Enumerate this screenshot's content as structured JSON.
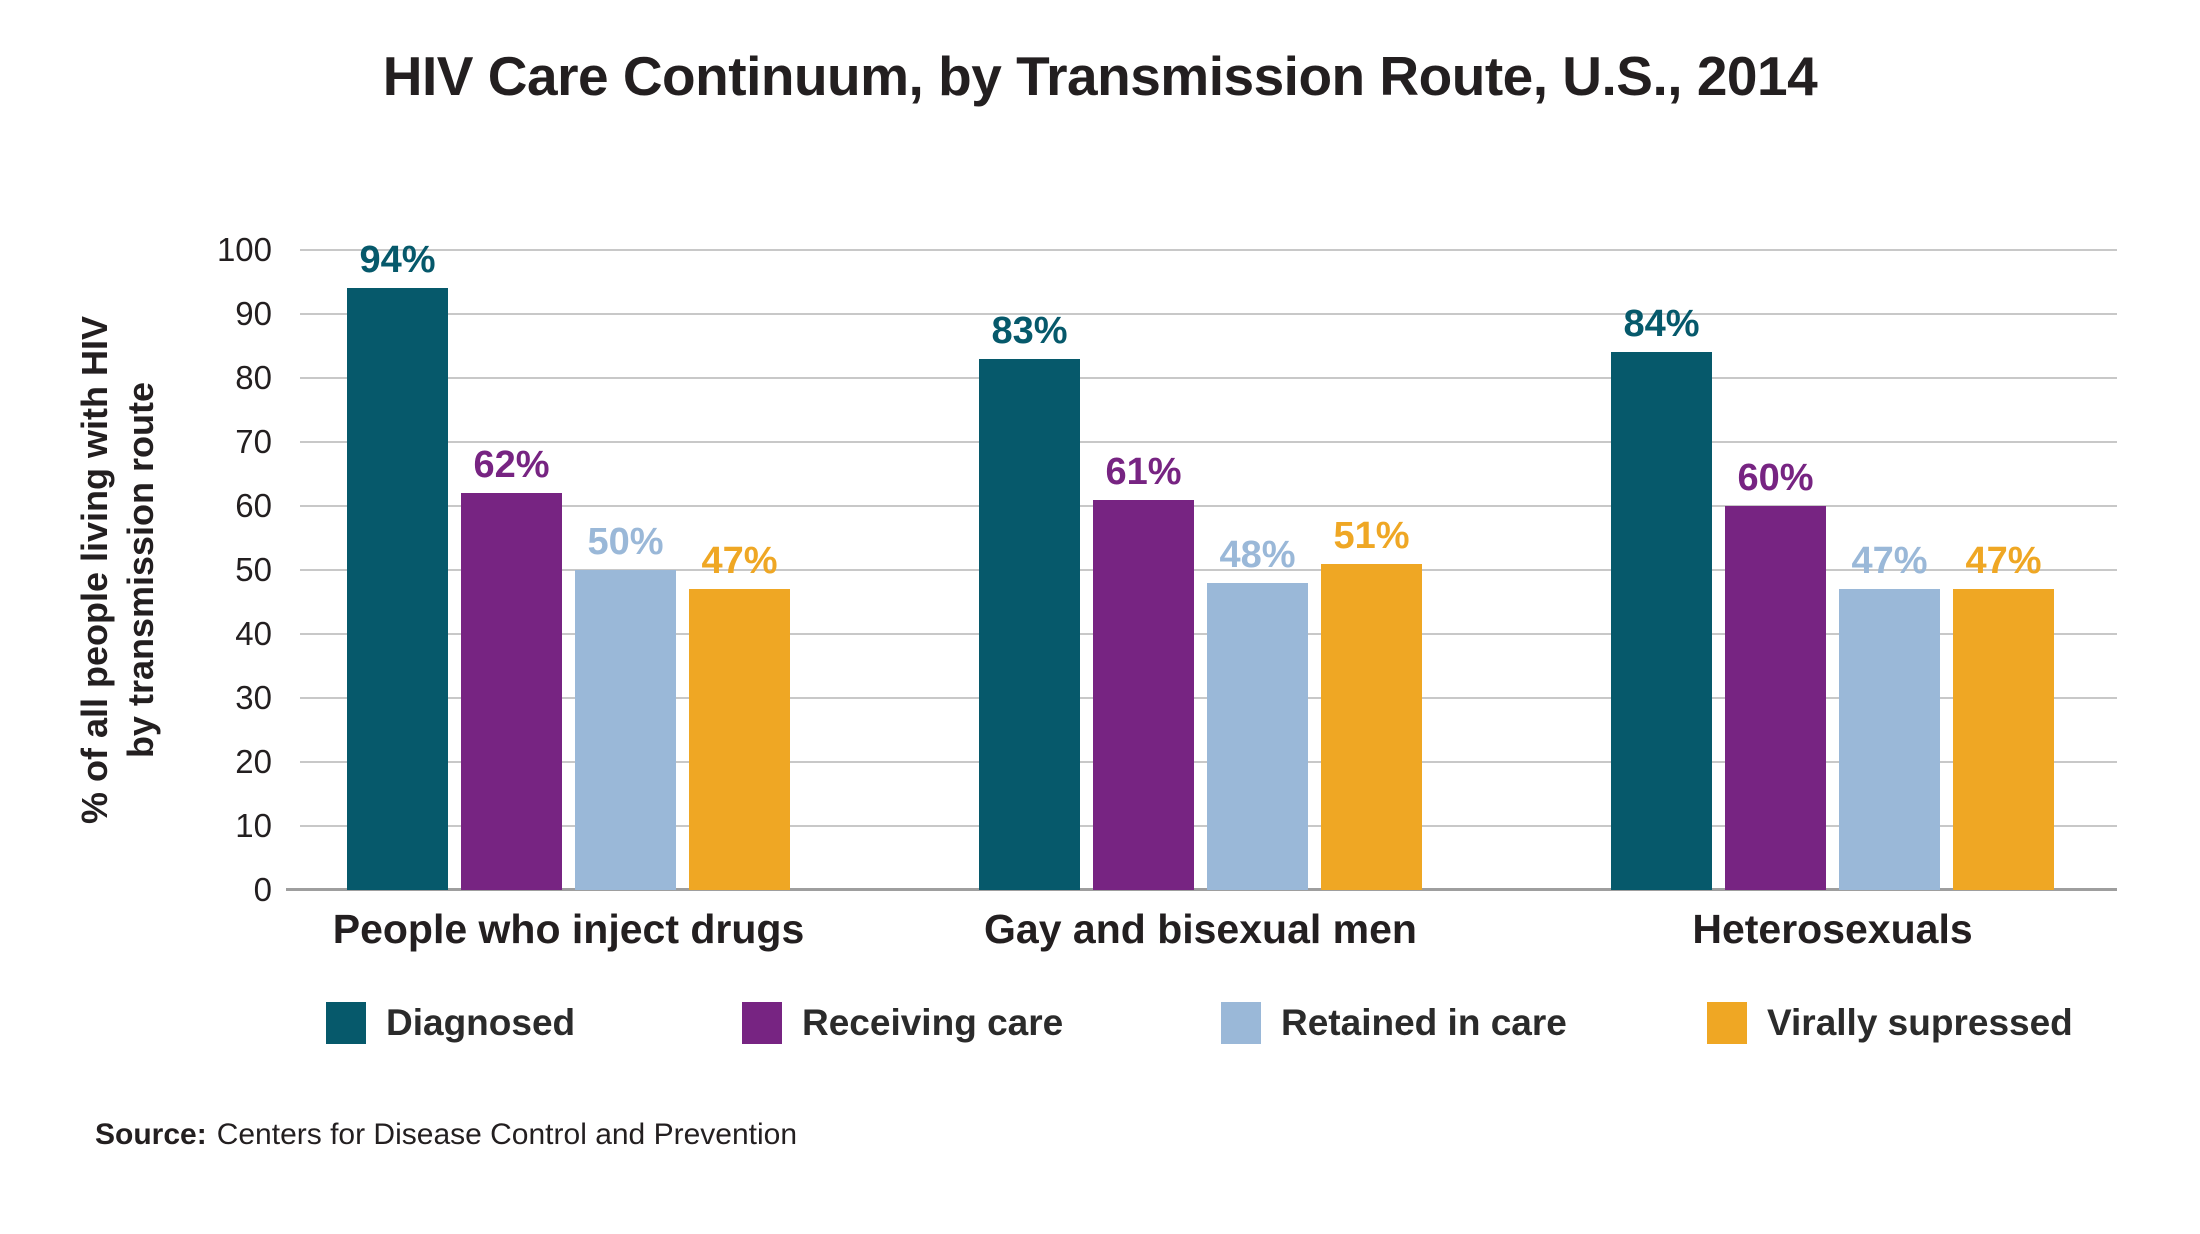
{
  "title": "HIV Care Continuum, by Transmission Route, U.S., 2014",
  "source": {
    "label": "Source:",
    "text": "Centers for Disease Control and Prevention"
  },
  "colors": {
    "teal": "#06596b",
    "purple": "#772482",
    "light_blue": "#9ab8d8",
    "orange": "#efa724",
    "gridline": "#c8c8c8",
    "axis_line": "#9e9e9e",
    "text": "#231f20"
  },
  "chart_data": {
    "type": "bar",
    "title": "HIV Care Continuum, by Transmission Route, U.S., 2014",
    "ylabel_lines": [
      "% of all people living with HIV",
      "by transmission route"
    ],
    "ylabel": "% of all people living with HIV by transmission route",
    "xlabel": "",
    "ylim": [
      0,
      100
    ],
    "yticks": [
      0,
      10,
      20,
      30,
      40,
      50,
      60,
      70,
      80,
      90,
      100
    ],
    "grid": true,
    "legend_position": "bottom",
    "value_label_format": "{v}%",
    "categories": [
      "People who inject drugs",
      "Gay and bisexual men",
      "Heterosexuals"
    ],
    "series": [
      {
        "name": "Diagnosed",
        "color": "#06596b",
        "values": [
          94,
          83,
          84
        ]
      },
      {
        "name": "Receiving care",
        "color": "#772482",
        "values": [
          62,
          61,
          60
        ]
      },
      {
        "name": "Retained in care",
        "color": "#9ab8d8",
        "values": [
          50,
          48,
          47
        ]
      },
      {
        "name": "Virally supressed",
        "color": "#efa724",
        "values": [
          47,
          51,
          47
        ]
      }
    ]
  }
}
